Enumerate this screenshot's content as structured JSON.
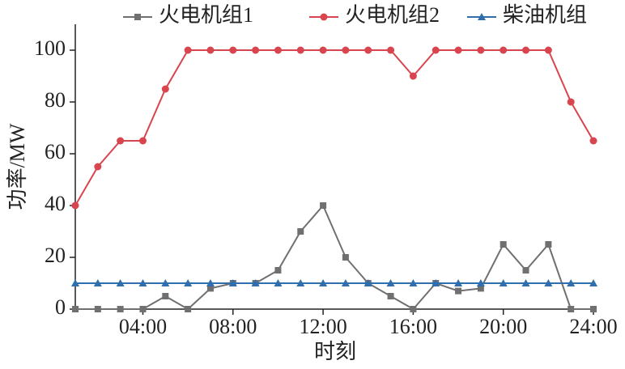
{
  "chart_data": {
    "type": "line",
    "x_label": "时刻",
    "y_label": "功率/MW",
    "x": [
      1,
      2,
      3,
      4,
      5,
      6,
      7,
      8,
      9,
      10,
      11,
      12,
      13,
      14,
      15,
      16,
      17,
      18,
      19,
      20,
      21,
      22,
      23,
      24
    ],
    "series": [
      {
        "name": "火电机组1",
        "color": "#707070",
        "marker": "square",
        "values": [
          0,
          0,
          0,
          0,
          5,
          0,
          8,
          10,
          10,
          15,
          30,
          40,
          20,
          10,
          5,
          0,
          10,
          7,
          8,
          25,
          15,
          25,
          0,
          0
        ]
      },
      {
        "name": "火电机组2",
        "color": "#d9454e",
        "marker": "circle",
        "values": [
          40,
          55,
          65,
          65,
          85,
          100,
          100,
          100,
          100,
          100,
          100,
          100,
          100,
          100,
          100,
          90,
          100,
          100,
          100,
          100,
          100,
          100,
          80,
          65
        ]
      },
      {
        "name": "柴油机组",
        "color": "#2f6fad",
        "marker": "triangle",
        "values": [
          10,
          10,
          10,
          10,
          10,
          10,
          10,
          10,
          10,
          10,
          10,
          10,
          10,
          10,
          10,
          10,
          10,
          10,
          10,
          10,
          10,
          10,
          10,
          10
        ]
      }
    ],
    "xlim": [
      1,
      24
    ],
    "xticks": [
      {
        "value": 4,
        "label": "04:00"
      },
      {
        "value": 8,
        "label": "08:00"
      },
      {
        "value": 12,
        "label": "12:00"
      },
      {
        "value": 16,
        "label": "16:00"
      },
      {
        "value": 20,
        "label": "20:00"
      },
      {
        "value": 24,
        "label": "24:00"
      }
    ],
    "ylim": [
      0,
      110
    ],
    "yticks": [
      0,
      20,
      40,
      60,
      80,
      100
    ],
    "legend": "top"
  }
}
